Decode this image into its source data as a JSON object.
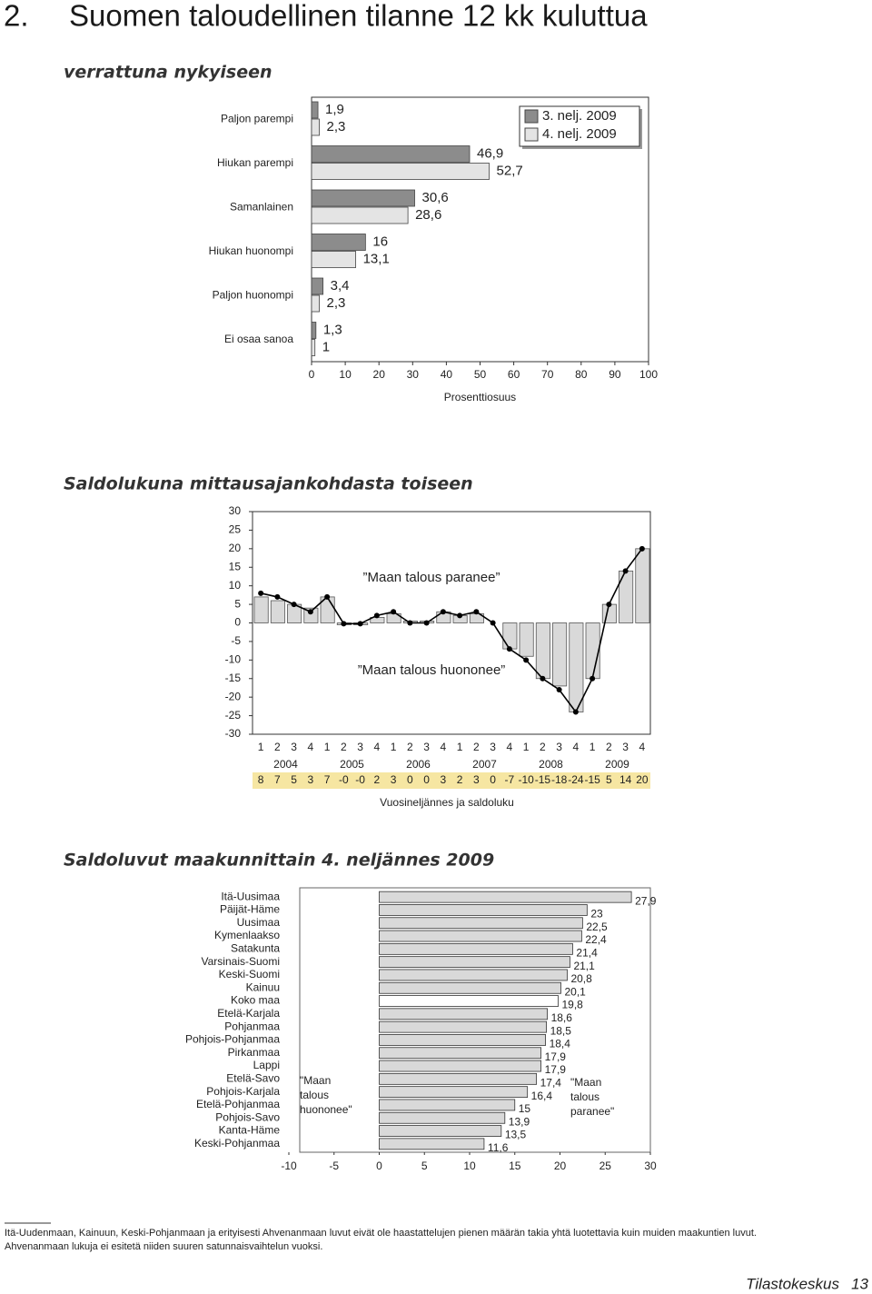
{
  "header": {
    "number": "2.",
    "title": "Suomen taloudellinen tilanne 12 kk kuluttua",
    "subtitle": "verrattuna nykyiseen"
  },
  "chart_data": [
    {
      "type": "hbar",
      "categories": [
        "Paljon parempi",
        "Hiukan parempi",
        "Samanlainen",
        "Hiukan huonompi",
        "Paljon huonompi",
        "Ei osaa sanoa"
      ],
      "series": [
        {
          "name": "3. nelj. 2009",
          "color": "#8c8c8c",
          "values": [
            1.9,
            46.9,
            30.6,
            16,
            3.4,
            1.3
          ],
          "value_labels": [
            "1,9",
            "46,9",
            "30,6",
            "16",
            "3,4",
            "1,3"
          ]
        },
        {
          "name": "4. nelj. 2009",
          "color": "#e4e4e4",
          "values": [
            2.3,
            52.7,
            28.6,
            13.1,
            2.3,
            1
          ],
          "value_labels": [
            "2,3",
            "52,7",
            "28,6",
            "13,1",
            "2,3",
            "1"
          ]
        }
      ],
      "xlim": [
        0,
        100
      ],
      "xticks": [
        0,
        10,
        20,
        30,
        40,
        50,
        60,
        70,
        80,
        90,
        100
      ],
      "xlabel": "Prosenttiosuus",
      "legend": "upper right"
    },
    {
      "type": "barline",
      "title": "Saldolukuna mittausajankohdasta toiseen",
      "categories": [
        "1",
        "2",
        "3",
        "4",
        "1",
        "2",
        "3",
        "4",
        "1",
        "2",
        "3",
        "4",
        "1",
        "2",
        "3",
        "4",
        "1",
        "2",
        "3",
        "4",
        "1",
        "2",
        "3",
        "4"
      ],
      "years": [
        "2004",
        "2005",
        "2006",
        "2007",
        "2008",
        "2009"
      ],
      "series": [
        {
          "type": "bar",
          "color": "#d9d9d9",
          "values": [
            7,
            6,
            5,
            4,
            7,
            -0.5,
            -0.5,
            1.5,
            2.5,
            0.5,
            0.5,
            3,
            2,
            2.5,
            0,
            -7,
            -9,
            -15,
            -17,
            -24,
            -15,
            5,
            14,
            20
          ]
        },
        {
          "type": "line",
          "color": "#000000",
          "values": [
            8,
            7,
            5,
            3,
            7,
            -0.2,
            -0.2,
            2,
            3,
            0,
            0,
            3,
            2,
            3,
            0,
            -7,
            -10,
            -15,
            -18,
            -24,
            -15,
            5,
            14,
            20
          ],
          "value_labels": [
            "8",
            "7",
            "5",
            "3",
            "7",
            "-0",
            "-0",
            "2",
            "3",
            "0",
            "0",
            "3",
            "2",
            "3",
            "0",
            "-7",
            "-10",
            "-15",
            "-18",
            "-24",
            "-15",
            "5",
            "14",
            "20"
          ]
        }
      ],
      "ylim": [
        -30,
        30
      ],
      "yticks": [
        -30,
        -25,
        -20,
        -15,
        -10,
        -5,
        0,
        5,
        10,
        15,
        20,
        25,
        30
      ],
      "annotations": [
        "”Maan talous paranee”",
        "”Maan talous huononee”"
      ],
      "xlabel": "Vuosineljännes ja saldoluku"
    },
    {
      "type": "hbar",
      "title": "Saldoluvut maakunnittain 4. neljännes 2009",
      "categories": [
        "Itä-Uusimaa",
        "Päijät-Häme",
        "Uusimaa",
        "Kymenlaakso",
        "Satakunta",
        "Varsinais-Suomi",
        "Keski-Suomi",
        "Kainuu",
        "Koko maa",
        "Etelä-Karjala",
        "Pohjanmaa",
        "Pohjois-Pohjanmaa",
        "Pirkanmaa",
        "Lappi",
        "Etelä-Savo",
        "Pohjois-Karjala",
        "Etelä-Pohjanmaa",
        "Pohjois-Savo",
        "Kanta-Häme",
        "Keski-Pohjanmaa"
      ],
      "values": [
        27.9,
        23,
        22.5,
        22.4,
        21.4,
        21.1,
        20.8,
        20.1,
        19.8,
        18.6,
        18.5,
        18.4,
        17.9,
        17.9,
        17.4,
        16.4,
        15,
        13.9,
        13.5,
        11.6
      ],
      "value_labels": [
        "27,9",
        "23",
        "22,5",
        "22,4",
        "21,4",
        "21,1",
        "20,8",
        "20,1",
        "19,8",
        "18,6",
        "18,5",
        "18,4",
        "17,9",
        "17,9",
        "17,4",
        "16,4",
        "15",
        "13,9",
        "13,5",
        "11,6"
      ],
      "colors": [
        "#d9d9d9",
        "#d9d9d9",
        "#d9d9d9",
        "#d9d9d9",
        "#d9d9d9",
        "#d9d9d9",
        "#d9d9d9",
        "#d9d9d9",
        "#ffffff",
        "#d9d9d9",
        "#d9d9d9",
        "#d9d9d9",
        "#d9d9d9",
        "#d9d9d9",
        "#d9d9d9",
        "#d9d9d9",
        "#d9d9d9",
        "#d9d9d9",
        "#d9d9d9",
        "#d9d9d9"
      ],
      "xlim": [
        -10,
        30
      ],
      "xticks": [
        -10,
        -5,
        0,
        5,
        10,
        15,
        20,
        25,
        30
      ],
      "annotations": [
        "\"Maan talous huononee\"",
        "\"Maan talous paranee\""
      ]
    }
  ],
  "footnote": [
    "Itä-Uudenmaan, Kainuun, Keski-Pohjanmaan ja erityisesti Ahvenanmaan luvut eivät ole haastattelujen pienen määrän takia yhtä luotettavia kuin muiden maakuntien luvut.",
    "Ahvenanmaan lukuja ei esitetä niiden suuren satunnaisvaihtelun vuoksi."
  ],
  "footer": {
    "publisher": "Tilastokeskus",
    "page": 13
  }
}
